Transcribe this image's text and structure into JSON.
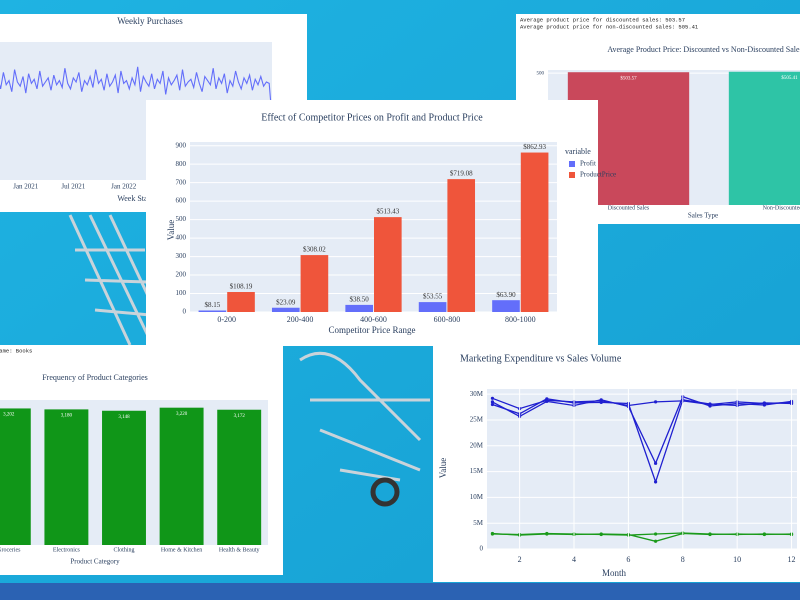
{
  "chart_data": [
    {
      "type": "line",
      "title": "Weekly Purchases",
      "xlabel": "Week Starting",
      "values": [
        70,
        74,
        66,
        78,
        69,
        72,
        64,
        80,
        71,
        68,
        75,
        63,
        77,
        70,
        73,
        66,
        79,
        68,
        71,
        74,
        65,
        76,
        69,
        72,
        67,
        81,
        70,
        66,
        74,
        71,
        78,
        64,
        72,
        69,
        75,
        67,
        80,
        70,
        73,
        65,
        77,
        68,
        71,
        76,
        63,
        79,
        70,
        72,
        66,
        74,
        69,
        82,
        64,
        75,
        71,
        68,
        77,
        66,
        73,
        70,
        79,
        62,
        74,
        69,
        72,
        76,
        65,
        80,
        68,
        71,
        73,
        67,
        78,
        70,
        64,
        75,
        72,
        69,
        81,
        66,
        74,
        70,
        77,
        63,
        72,
        68,
        79,
        71,
        66,
        74,
        70,
        76,
        65,
        73,
        69,
        75,
        68,
        71,
        70,
        45
      ],
      "color": "#636efa",
      "xlim": [
        0,
        99
      ],
      "ylim": [
        0,
        100
      ],
      "xticks": [
        {
          "value": 11,
          "label": "Jan 2021"
        },
        {
          "value": 28,
          "label": "Jul 2021"
        },
        {
          "value": 46,
          "label": "Jan 2022"
        }
      ]
    },
    {
      "type": "bar",
      "notes": [
        "Average product price for discounted sales: 503.57",
        "Average product price for non-discounted sales: 505.41"
      ],
      "title": "Average Product Price: Discounted vs Non-Discounted Sales",
      "xlabel": "Sales Type",
      "categories": [
        "Discounted Sales",
        "Non-Discounted Sales"
      ],
      "values": [
        503.57,
        505.41
      ],
      "value_labels": [
        "$503.57",
        "$505.41"
      ],
      "colors": [
        "#c9485b",
        "#2ec4a6"
      ],
      "ylim": [
        0,
        512
      ],
      "yticks": [
        500
      ],
      "grid": true
    },
    {
      "type": "bar",
      "title": "Effect of Competitor Prices on Profit and Product Price",
      "xlabel": "Competitor Price Range",
      "ylabel": "Value",
      "legend_title": "variable",
      "legend": "right",
      "categories": [
        "0-200",
        "200-400",
        "400-600",
        "600-800",
        "800-1000"
      ],
      "series": [
        {
          "name": "Profit",
          "color": "#636efa",
          "values": [
            8.15,
            23.09,
            38.5,
            53.55,
            63.9
          ],
          "value_labels": [
            "$8.15",
            "$23.09",
            "$38.50",
            "$53.55",
            "$63.90"
          ]
        },
        {
          "name": "ProductPrice",
          "color": "#ef553b",
          "values": [
            108.19,
            308.02,
            513.43,
            719.08,
            862.93
          ],
          "value_labels": [
            "$108.19",
            "$308.02",
            "$513.43",
            "$719.08",
            "$862.93"
          ]
        }
      ],
      "ylim": [
        0,
        920
      ],
      "yticks": [
        0,
        100,
        200,
        300,
        400,
        500,
        600,
        700,
        800,
        900
      ],
      "grid": true
    },
    {
      "type": "bar",
      "notes": [
        "Name: Books"
      ],
      "title": "Frequency of Product Categories",
      "xlabel": "Product Category",
      "categories": [
        "Groceries",
        "Electronics",
        "Clothing",
        "Home & Kitchen",
        "Health & Beauty"
      ],
      "values": [
        3202,
        3180,
        3148,
        3220,
        3172
      ],
      "value_labels": [
        "3,202",
        "3,180",
        "3,148",
        "3,220",
        "3,172"
      ],
      "color": "#109618",
      "ylim": [
        0,
        3400
      ]
    },
    {
      "type": "line",
      "title": "Marketing Expenditure vs Sales Volume",
      "xlabel": "Month",
      "ylabel": "Value",
      "x": [
        1,
        2,
        3,
        4,
        5,
        6,
        7,
        8,
        9,
        10,
        11,
        12
      ],
      "series": [
        {
          "color": "#1f1fd0",
          "values": [
            29200000,
            27200000,
            28800000,
            28500000,
            28700000,
            27800000,
            28500000,
            28700000,
            28000000,
            28500000,
            28200000,
            28400000
          ]
        },
        {
          "color": "#1f1fd0",
          "values": [
            28500000,
            25700000,
            28600000,
            27800000,
            28900000,
            27600000,
            16600000,
            29500000,
            27700000,
            28200000,
            27900000,
            28600000
          ]
        },
        {
          "color": "#1f1fd0",
          "values": [
            28000000,
            26200000,
            29100000,
            28300000,
            28400000,
            28200000,
            13000000,
            28900000,
            28100000,
            27800000,
            28300000,
            28200000
          ]
        },
        {
          "color": "#1a9a1a",
          "values": [
            3000000,
            2700000,
            2900000,
            2800000,
            2900000,
            2800000,
            1500000,
            3000000,
            2800000,
            2900000,
            2800000,
            2900000
          ]
        },
        {
          "color": "#1a9a1a",
          "values": [
            2900000,
            2800000,
            3000000,
            2900000,
            2800000,
            2700000,
            2900000,
            3100000,
            2900000,
            2800000,
            2900000,
            2800000
          ]
        }
      ],
      "xlim": [
        0.8,
        12.2
      ],
      "xticks": [
        2,
        4,
        6,
        8,
        10,
        12
      ],
      "ylim": [
        0,
        31000000
      ],
      "yticks": [
        0,
        {
          "value": 5000000,
          "label": "5M"
        },
        {
          "value": 10000000,
          "label": "10M"
        },
        {
          "value": 15000000,
          "label": "15M"
        },
        {
          "value": 20000000,
          "label": "20M"
        },
        {
          "value": 25000000,
          "label": "25M"
        },
        {
          "value": 30000000,
          "label": "30M"
        }
      ],
      "grid": true,
      "markers": true
    }
  ]
}
